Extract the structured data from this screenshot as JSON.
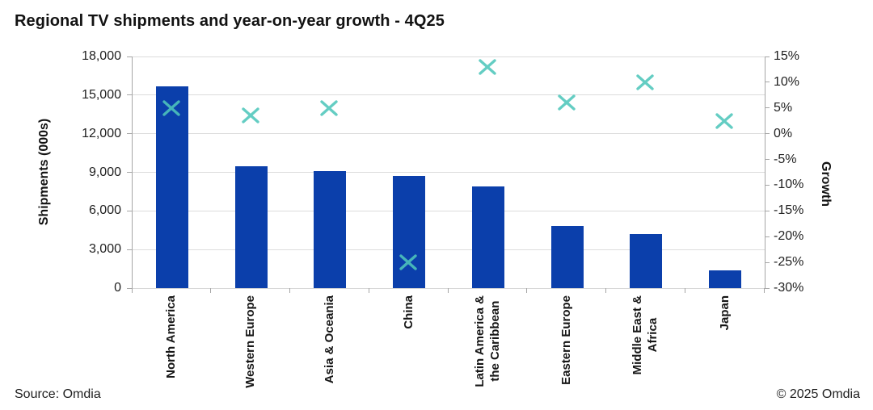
{
  "title": "Regional TV shipments and year-on-year growth - 4Q25",
  "footer": {
    "source": "Source: Omdia",
    "copyright": "© 2025 Omdia"
  },
  "colors": {
    "bar": "#0b3fab",
    "marker": "#4fc6bb",
    "gridline": "#dcdcdc",
    "axis": "#a6a6a6"
  },
  "chart_data": {
    "type": "combo (bar + scatter-x markers)",
    "title": "Regional TV shipments and year-on-year growth - 4Q25",
    "categories": [
      [
        "North America"
      ],
      [
        "Western Europe"
      ],
      [
        "Asia & Oceania"
      ],
      [
        "China"
      ],
      [
        "Latin America &",
        "the Caribbean"
      ],
      [
        "Eastern Europe"
      ],
      [
        "Middle East &",
        "Africa"
      ],
      [
        "Japan"
      ]
    ],
    "series": [
      {
        "name": "Shipments (000s)",
        "type": "bar",
        "axis": "left",
        "color": "#0b3fab",
        "values": [
          15700,
          9500,
          9100,
          8700,
          7900,
          4800,
          4200,
          1400
        ]
      },
      {
        "name": "Growth",
        "type": "scatter",
        "marker": "x",
        "axis": "right",
        "color": "#4fc6bb",
        "values": [
          5,
          3.5,
          5,
          -25,
          13,
          6,
          10,
          2.5
        ]
      }
    ],
    "left_axis": {
      "label": "Shipments (000s)",
      "min": 0,
      "max": 18000,
      "step": 3000,
      "tick_labels": [
        "0",
        "3,000",
        "6,000",
        "9,000",
        "12,000",
        "15,000",
        "18,000"
      ]
    },
    "right_axis": {
      "label": "Growth",
      "min": -30,
      "max": 15,
      "step": 5,
      "tick_labels": [
        "15%",
        "10%",
        "5%",
        "0%",
        "-5%",
        "-10%",
        "-15%",
        "-20%",
        "-25%",
        "-30%"
      ]
    },
    "gridlines": true,
    "legend": false
  }
}
